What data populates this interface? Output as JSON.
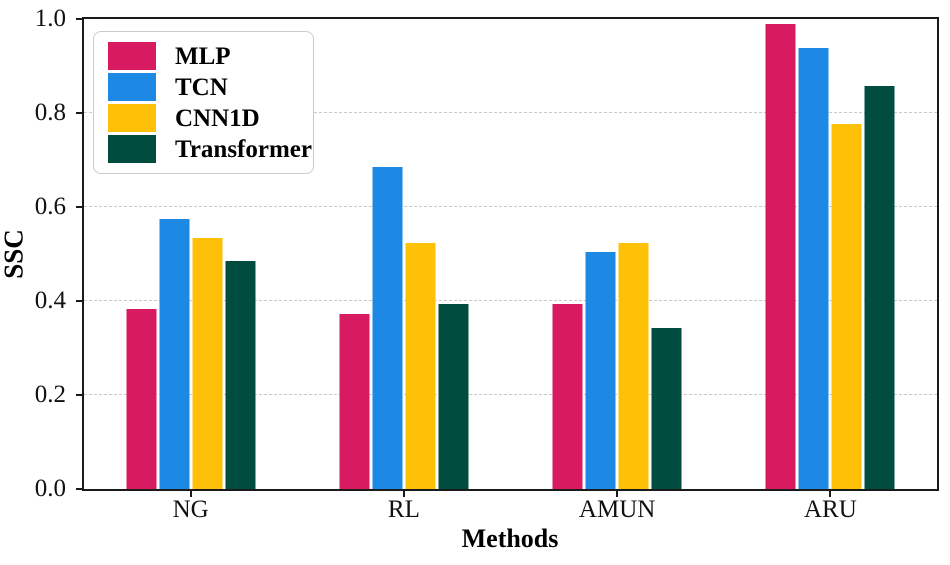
{
  "chart_data": {
    "type": "bar",
    "title": "",
    "xlabel": "Methods",
    "ylabel": "SSC",
    "categories": [
      "NG",
      "RL",
      "AMUN",
      "ARU"
    ],
    "series": [
      {
        "name": "MLP",
        "color": "#D81B60",
        "values": [
          0.38,
          0.37,
          0.39,
          0.98
        ]
      },
      {
        "name": "TCN",
        "color": "#1E88E5",
        "values": [
          0.57,
          0.68,
          0.5,
          0.93
        ]
      },
      {
        "name": "CNN1D",
        "color": "#FFC107",
        "values": [
          0.53,
          0.52,
          0.52,
          0.77
        ]
      },
      {
        "name": "Transformer",
        "color": "#004D40",
        "values": [
          0.48,
          0.39,
          0.34,
          0.85
        ]
      }
    ],
    "ylim": [
      0.0,
      1.0
    ],
    "yticks": [
      "0.0",
      "0.2",
      "0.4",
      "0.6",
      "0.8",
      "1.0"
    ],
    "gridline_values": [
      0.2,
      0.4,
      0.6,
      0.8
    ],
    "grid": "horizontal-dashed",
    "legend_position": "upper-left",
    "colors": {
      "grid": "#c9c9c9",
      "spine": "#1a1a1a",
      "background": "#ffffff"
    }
  }
}
